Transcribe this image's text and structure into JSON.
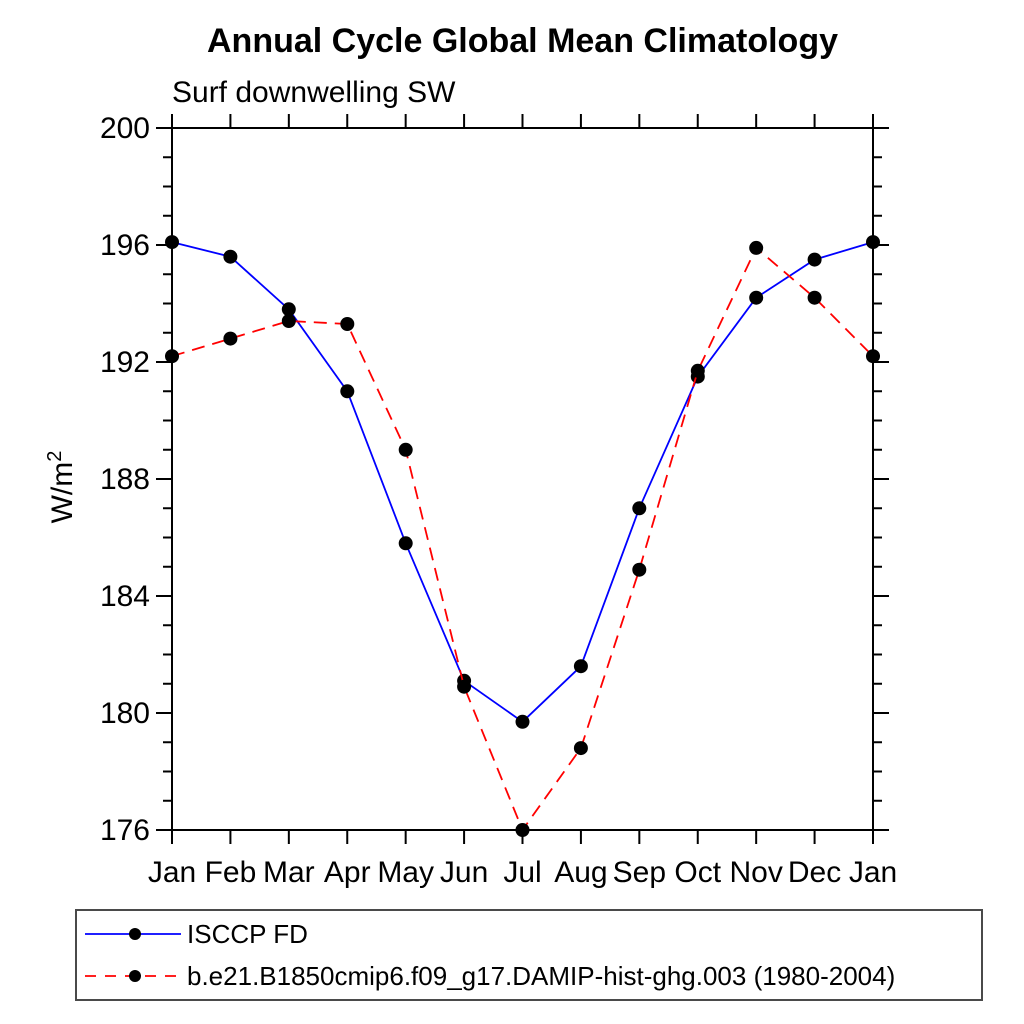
{
  "chart_data": {
    "type": "line",
    "title": "Annual Cycle Global Mean Climatology",
    "subtitle": "Surf downwelling SW",
    "ylabel_base": "W/m",
    "ylabel_exp": "2",
    "categories": [
      "Jan",
      "Feb",
      "Mar",
      "Apr",
      "May",
      "Jun",
      "Jul",
      "Aug",
      "Sep",
      "Oct",
      "Nov",
      "Dec",
      "Jan"
    ],
    "ylim": [
      176,
      200
    ],
    "ytick_labels": [
      176,
      180,
      184,
      188,
      192,
      196,
      200
    ],
    "ytick_minor_step": 1,
    "grid": false,
    "legend_position": "bottom-left",
    "frame_color": "#000000",
    "marker_color": "#000000",
    "series": [
      {
        "name": "ISCCP FD",
        "color": "#0000ff",
        "style": "solid",
        "marker": "circle",
        "values": [
          196.1,
          195.6,
          193.8,
          191.0,
          185.8,
          181.1,
          179.7,
          181.6,
          187.0,
          191.5,
          194.2,
          195.5,
          196.1
        ]
      },
      {
        "name": "b.e21.B1850cmip6.f09_g17.DAMIP-hist-ghg.003 (1980-2004)",
        "color": "#ff0000",
        "style": "dashed",
        "marker": "circle",
        "values": [
          192.2,
          192.8,
          193.4,
          193.3,
          189.0,
          180.9,
          176.0,
          178.8,
          184.9,
          191.7,
          195.9,
          194.2,
          192.2
        ]
      }
    ]
  }
}
